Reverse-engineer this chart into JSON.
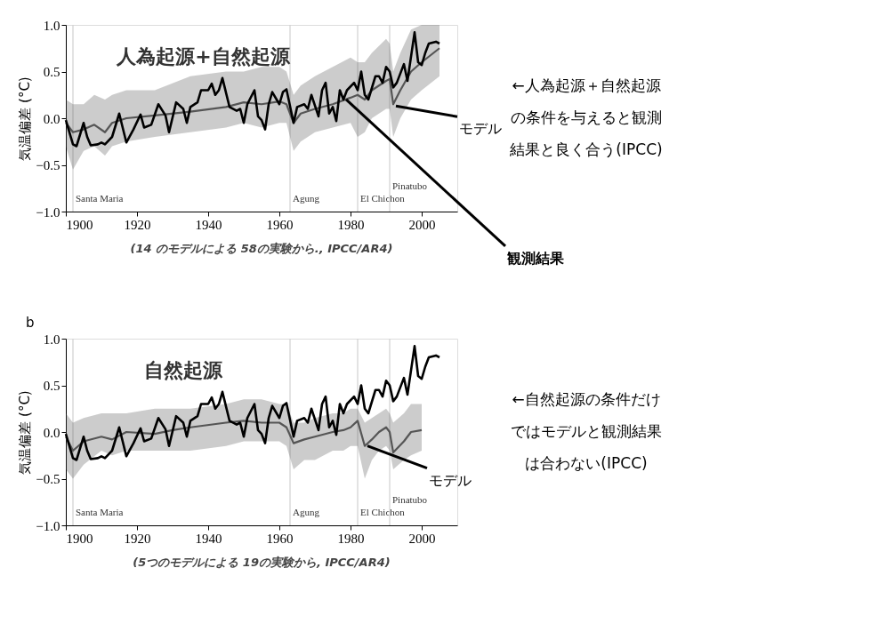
{
  "chart_data": [
    {
      "type": "line",
      "title": "人為起源+自然起源",
      "ylabel": "気温偏差 (°C)",
      "xlim": [
        1900,
        2010
      ],
      "xticks": [
        1900,
        1920,
        1940,
        1960,
        1980,
        2000
      ],
      "ylim": [
        -1.0,
        1.0
      ],
      "yticks": [
        {
          "value": -1.0,
          "label": "−1.0"
        },
        {
          "value": -0.5,
          "label": "−0.5"
        },
        {
          "value": 0.0,
          "label": "0.0"
        },
        {
          "value": 0.5,
          "label": "0.5"
        },
        {
          "value": 1.0,
          "label": "1.0"
        }
      ],
      "grid": false,
      "ref_lines": [
        {
          "axis": "x",
          "value": 1902,
          "label": "Santa Maria",
          "color": "#d0d0d0"
        },
        {
          "axis": "x",
          "value": 1963,
          "label": "Agung",
          "color": "#d0d0d0"
        },
        {
          "axis": "x",
          "value": 1982,
          "label": "El Chichon",
          "color": "#d0d0d0"
        },
        {
          "axis": "x",
          "value": 1991,
          "label": "Pinatubo",
          "color": "#d0d0d0"
        }
      ],
      "series": [
        {
          "color": "#555555",
          "x": [
            1900,
            1902,
            1905,
            1908,
            1911,
            1913,
            1917,
            1925,
            1935,
            1945,
            1950,
            1955,
            1960,
            1962,
            1964,
            1966,
            1970,
            1975,
            1980,
            1982,
            1984,
            1986,
            1990,
            1991,
            1992,
            1994,
            1997,
            2000,
            2005
          ],
          "values": [
            -0.05,
            -0.15,
            -0.12,
            -0.07,
            -0.15,
            -0.05,
            0.0,
            0.03,
            0.07,
            0.12,
            0.17,
            0.15,
            0.18,
            0.15,
            -0.05,
            0.05,
            0.1,
            0.15,
            0.22,
            0.25,
            0.2,
            0.3,
            0.4,
            0.42,
            0.15,
            0.3,
            0.5,
            0.6,
            0.75
          ],
          "lower": [
            -0.3,
            -0.55,
            -0.35,
            -0.3,
            -0.4,
            -0.3,
            -0.25,
            -0.2,
            -0.15,
            -0.1,
            -0.05,
            -0.1,
            -0.05,
            -0.05,
            -0.35,
            -0.25,
            -0.15,
            -0.1,
            -0.05,
            -0.2,
            -0.15,
            0.0,
            0.1,
            0.1,
            -0.2,
            0.0,
            0.2,
            0.3,
            0.45
          ],
          "upper": [
            0.2,
            0.15,
            0.15,
            0.25,
            0.2,
            0.25,
            0.3,
            0.3,
            0.45,
            0.5,
            0.5,
            0.55,
            0.55,
            0.5,
            0.25,
            0.35,
            0.45,
            0.55,
            0.65,
            0.6,
            0.6,
            0.7,
            0.85,
            0.8,
            0.5,
            0.7,
            0.95,
            1.0,
            1.0
          ]
        },
        {
          "color": "#000000",
          "x": [
            1900,
            1902,
            1903,
            1905,
            1906,
            1907,
            1909,
            1910,
            1911,
            1913,
            1915,
            1917,
            1919,
            1921,
            1922,
            1924,
            1926,
            1928,
            1929,
            1931,
            1933,
            1934,
            1935,
            1937,
            1938,
            1940,
            1941,
            1942,
            1943,
            1944,
            1946,
            1948,
            1949,
            1950,
            1951,
            1953,
            1954,
            1955,
            1956,
            1957,
            1958,
            1960,
            1961,
            1962,
            1964,
            1965,
            1967,
            1968,
            1969,
            1971,
            1972,
            1973,
            1974,
            1975,
            1976,
            1977,
            1978,
            1979,
            1981,
            1982,
            1983,
            1984,
            1985,
            1987,
            1988,
            1989,
            1990,
            1991,
            1992,
            1993,
            1995,
            1996,
            1998,
            1999,
            2000,
            2001,
            2002,
            2004,
            2005
          ],
          "values": [
            -0.02,
            -0.28,
            -0.3,
            -0.05,
            -0.2,
            -0.29,
            -0.28,
            -0.26,
            -0.28,
            -0.2,
            0.05,
            -0.26,
            -0.12,
            0.04,
            -0.1,
            -0.07,
            0.15,
            0.03,
            -0.15,
            0.17,
            0.1,
            -0.05,
            0.12,
            0.17,
            0.3,
            0.3,
            0.37,
            0.25,
            0.3,
            0.43,
            0.12,
            0.08,
            0.1,
            -0.05,
            0.15,
            0.3,
            0.02,
            -0.02,
            -0.12,
            0.15,
            0.28,
            0.15,
            0.28,
            0.31,
            -0.05,
            0.12,
            0.15,
            0.1,
            0.25,
            0.02,
            0.3,
            0.38,
            0.05,
            0.12,
            -0.03,
            0.3,
            0.2,
            0.3,
            0.38,
            0.3,
            0.5,
            0.25,
            0.2,
            0.45,
            0.45,
            0.38,
            0.55,
            0.5,
            0.33,
            0.38,
            0.58,
            0.4,
            0.92,
            0.6,
            0.57,
            0.7,
            0.8,
            0.82,
            0.8
          ]
        }
      ],
      "annotations": [
        "(14 のモデルによる 58の実験から., IPCC/AR4)",
        "←人為起源＋自然起源の条件を与えると観測結果と良く合う(IPCC)",
        {
          "text": "モデル",
          "x": 1992,
          "y": 0.15
        },
        {
          "text": "観測結果",
          "x": 1978,
          "y": 0.22
        }
      ]
    },
    {
      "type": "line",
      "title": "自然起源",
      "ylabel": "気温偏差 (°C)",
      "xlim": [
        1900,
        2010
      ],
      "xticks": [
        1900,
        1920,
        1940,
        1960,
        1980,
        2000
      ],
      "ylim": [
        -1.0,
        1.0
      ],
      "yticks": [
        {
          "value": -1.0,
          "label": "−1.0"
        },
        {
          "value": -0.5,
          "label": "−0.5"
        },
        {
          "value": 0.0,
          "label": "0.0"
        },
        {
          "value": 0.5,
          "label": "0.5"
        },
        {
          "value": 1.0,
          "label": "1.0"
        }
      ],
      "grid": false,
      "ref_lines": [
        {
          "axis": "x",
          "value": 1902,
          "label": "Santa Maria",
          "color": "#d0d0d0"
        },
        {
          "axis": "x",
          "value": 1963,
          "label": "Agung",
          "color": "#d0d0d0"
        },
        {
          "axis": "x",
          "value": 1982,
          "label": "El Chichon",
          "color": "#d0d0d0"
        },
        {
          "axis": "x",
          "value": 1991,
          "label": "Pinatubo",
          "color": "#d0d0d0"
        }
      ],
      "series": [
        {
          "color": "#555555",
          "x": [
            1900,
            1902,
            1905,
            1910,
            1913,
            1917,
            1925,
            1930,
            1935,
            1945,
            1950,
            1955,
            1960,
            1962,
            1964,
            1967,
            1970,
            1975,
            1978,
            1980,
            1982,
            1984,
            1986,
            1988,
            1990,
            1991,
            1992,
            1995,
            1997,
            2000
          ],
          "values": [
            -0.05,
            -0.2,
            -0.1,
            -0.05,
            -0.08,
            0.0,
            -0.02,
            0.02,
            0.05,
            0.1,
            0.12,
            0.1,
            0.1,
            0.05,
            -0.12,
            -0.08,
            -0.05,
            0.0,
            0.02,
            0.05,
            0.12,
            -0.15,
            -0.08,
            0.0,
            0.05,
            0.0,
            -0.22,
            -0.1,
            0.0,
            0.02
          ],
          "lower": [
            -0.4,
            -0.5,
            -0.35,
            -0.2,
            -0.25,
            -0.2,
            -0.2,
            -0.2,
            -0.2,
            -0.15,
            -0.1,
            -0.1,
            -0.1,
            -0.15,
            -0.4,
            -0.3,
            -0.3,
            -0.2,
            -0.2,
            -0.15,
            -0.15,
            -0.5,
            -0.3,
            -0.2,
            -0.15,
            -0.2,
            -0.4,
            -0.3,
            -0.25,
            -0.2
          ],
          "upper": [
            0.2,
            0.1,
            0.15,
            0.2,
            0.2,
            0.2,
            0.25,
            0.25,
            0.25,
            0.3,
            0.35,
            0.35,
            0.3,
            0.3,
            0.1,
            0.1,
            0.15,
            0.2,
            0.2,
            0.25,
            0.25,
            0.1,
            0.15,
            0.2,
            0.25,
            0.2,
            0.1,
            0.2,
            0.3,
            0.3
          ]
        },
        {
          "color": "#000000",
          "x": [
            1900,
            1902,
            1903,
            1905,
            1906,
            1907,
            1909,
            1910,
            1911,
            1913,
            1915,
            1917,
            1919,
            1921,
            1922,
            1924,
            1926,
            1928,
            1929,
            1931,
            1933,
            1934,
            1935,
            1937,
            1938,
            1940,
            1941,
            1942,
            1943,
            1944,
            1946,
            1948,
            1949,
            1950,
            1951,
            1953,
            1954,
            1955,
            1956,
            1957,
            1958,
            1960,
            1961,
            1962,
            1964,
            1965,
            1967,
            1968,
            1969,
            1971,
            1972,
            1973,
            1974,
            1975,
            1976,
            1977,
            1978,
            1979,
            1981,
            1982,
            1983,
            1984,
            1985,
            1987,
            1988,
            1989,
            1990,
            1991,
            1992,
            1993,
            1995,
            1996,
            1998,
            1999,
            2000,
            2001,
            2002,
            2004,
            2005
          ],
          "values": [
            -0.02,
            -0.28,
            -0.3,
            -0.05,
            -0.2,
            -0.29,
            -0.28,
            -0.26,
            -0.28,
            -0.2,
            0.05,
            -0.26,
            -0.12,
            0.04,
            -0.1,
            -0.07,
            0.15,
            0.03,
            -0.15,
            0.17,
            0.1,
            -0.05,
            0.12,
            0.17,
            0.3,
            0.3,
            0.37,
            0.25,
            0.3,
            0.43,
            0.12,
            0.08,
            0.1,
            -0.05,
            0.15,
            0.3,
            0.02,
            -0.02,
            -0.12,
            0.15,
            0.28,
            0.15,
            0.28,
            0.31,
            -0.05,
            0.12,
            0.15,
            0.1,
            0.25,
            0.02,
            0.3,
            0.38,
            0.05,
            0.12,
            -0.03,
            0.3,
            0.2,
            0.3,
            0.38,
            0.3,
            0.5,
            0.25,
            0.2,
            0.45,
            0.45,
            0.38,
            0.55,
            0.5,
            0.33,
            0.38,
            0.58,
            0.4,
            0.92,
            0.6,
            0.57,
            0.7,
            0.8,
            0.82,
            0.8
          ]
        }
      ],
      "annotations": [
        "(5つのモデルによる 19の実験から, IPCC/AR4)",
        "←自然起源の条件だけではモデルと観測結果は合わない(IPCC)",
        "b",
        {
          "text": "モデル",
          "x": 1984,
          "y": -0.13
        }
      ]
    }
  ]
}
